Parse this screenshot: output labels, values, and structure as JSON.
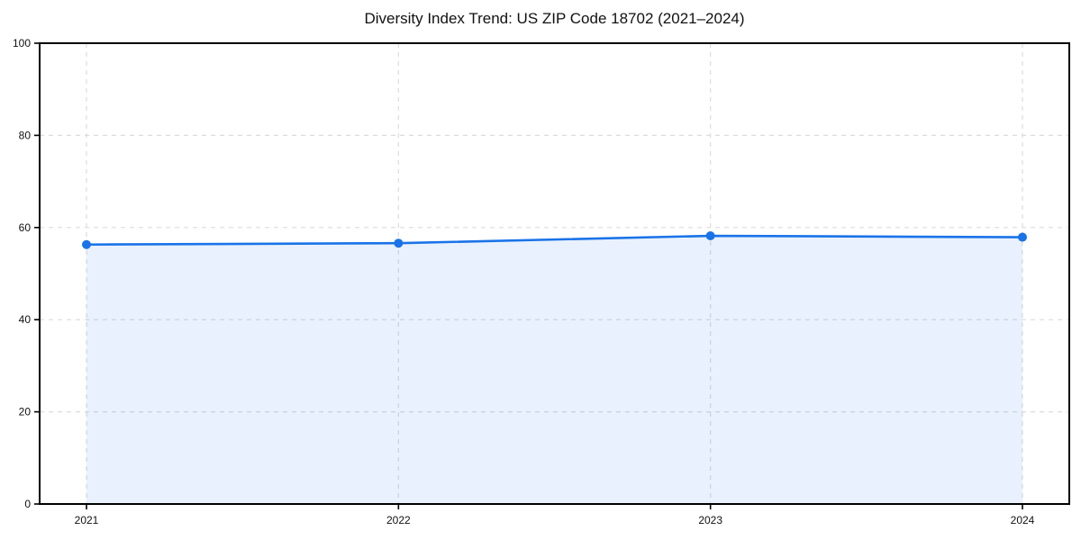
{
  "chart_data": {
    "type": "area",
    "title": "Diversity Index Trend: US ZIP Code 18702 (2021–2024)",
    "categories": [
      "2021",
      "2022",
      "2023",
      "2024"
    ],
    "values": [
      56.3,
      56.6,
      58.2,
      57.9
    ],
    "series": [
      {
        "name": "Diversity Index",
        "values": [
          56.3,
          56.6,
          58.2,
          57.9
        ]
      }
    ],
    "xlabel": "",
    "ylabel": "",
    "ylim": [
      0,
      100
    ],
    "yticks": [
      0,
      20,
      40,
      60,
      80,
      100
    ],
    "grid": "dashed-both-axes",
    "legend_position": "none",
    "line_color": "#1a73e8",
    "marker_color": "#1a73e8",
    "fill_color": "#1a73e8",
    "fill_opacity": 0.1,
    "grid_color": "#dcdcdc",
    "axis_color": "#000000",
    "text_color": "#111111",
    "background_color": "#ffffff"
  }
}
